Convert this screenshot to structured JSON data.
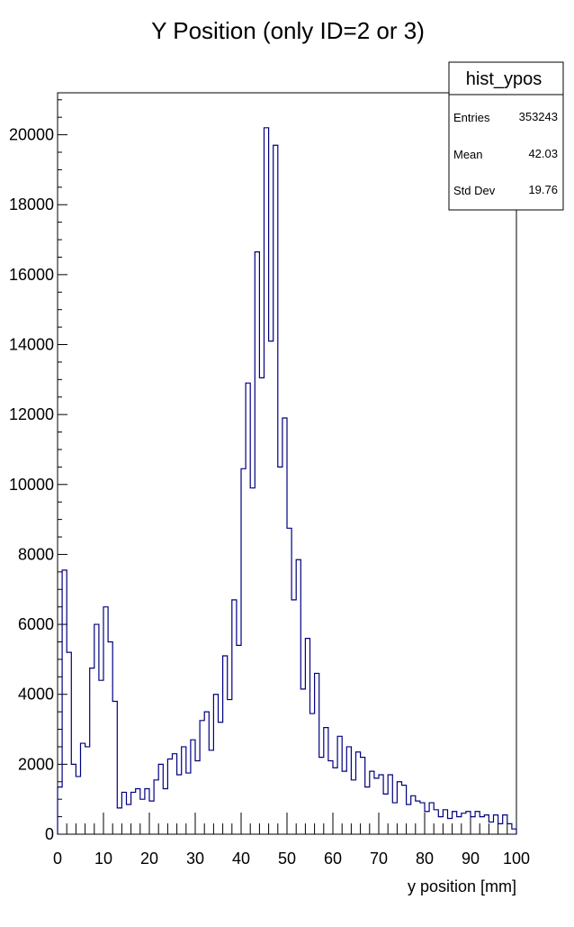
{
  "chart_data": {
    "type": "histogram",
    "title": "Y Position (only ID=2 or 3)",
    "xlabel": "y position [mm]",
    "ylabel": "",
    "xlim": [
      0,
      100
    ],
    "ylim": [
      0,
      21200
    ],
    "bins": 100,
    "bin_width": 1,
    "x_ticks": [
      0,
      10,
      20,
      30,
      40,
      50,
      60,
      70,
      80,
      90,
      100
    ],
    "y_ticks": [
      0,
      2000,
      4000,
      6000,
      8000,
      10000,
      12000,
      14000,
      16000,
      18000,
      20000
    ],
    "line_color": "#00007f",
    "values": [
      1350,
      7550,
      5200,
      2000,
      1650,
      2600,
      2500,
      4750,
      6000,
      4400,
      6500,
      5500,
      3800,
      750,
      1200,
      850,
      1200,
      1300,
      1000,
      1300,
      950,
      1550,
      2000,
      1300,
      2150,
      2300,
      1700,
      2500,
      1750,
      2700,
      2100,
      3250,
      3500,
      2400,
      4000,
      3200,
      5100,
      3850,
      6700,
      5400,
      10450,
      12900,
      9900,
      16650,
      13050,
      20200,
      14100,
      19700,
      10500,
      11900,
      8750,
      6700,
      7850,
      4150,
      5600,
      3450,
      4600,
      2200,
      3050,
      2100,
      1900,
      2800,
      1800,
      2500,
      1550,
      2350,
      2200,
      1350,
      1800,
      1600,
      1700,
      1150,
      1700,
      900,
      1500,
      1400,
      850,
      1100,
      950,
      900,
      650,
      900,
      700,
      500,
      700,
      450,
      650,
      500,
      600,
      650,
      500,
      650,
      500,
      550,
      350,
      550,
      300,
      550,
      300,
      150
    ]
  },
  "stats_box": {
    "title": "hist_ypos",
    "rows": [
      {
        "label": "Entries",
        "value": "353243"
      },
      {
        "label": "Mean",
        "value": "42.03"
      },
      {
        "label": "Std Dev",
        "value": "19.76"
      }
    ]
  }
}
